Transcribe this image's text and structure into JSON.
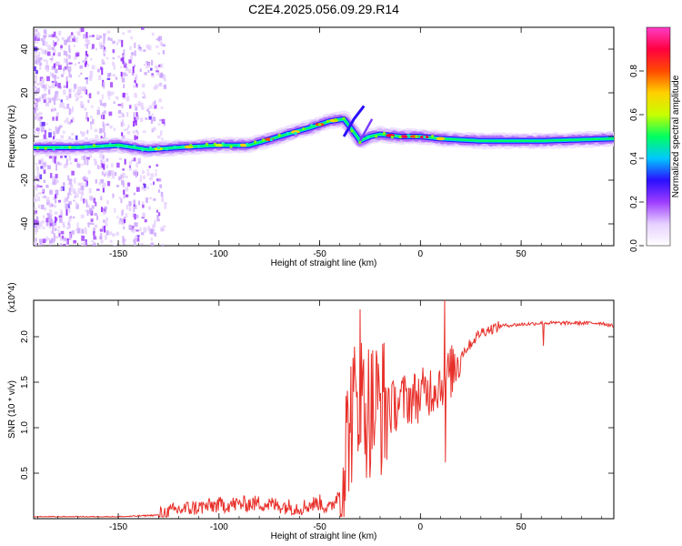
{
  "title": "C2E4.2025.056.09.29.R14",
  "chart_data": [
    {
      "type": "heatmap",
      "xlabel": "Height of straight line (km)",
      "ylabel": "Frequency (Hz)",
      "xlim": [
        -192,
        96
      ],
      "ylim": [
        -50,
        50
      ],
      "xticks": [
        -150,
        -100,
        -50,
        0,
        50
      ],
      "yticks": [
        -40,
        -20,
        0,
        20,
        40
      ],
      "ridge": {
        "x": [
          -190,
          -170,
          -150,
          -135,
          -120,
          -100,
          -85,
          -70,
          -55,
          -45,
          -38,
          -33,
          -30,
          -25,
          -20,
          -10,
          0,
          10,
          30,
          60,
          95
        ],
        "freq": [
          -5,
          -5,
          -4,
          -6,
          -5,
          -4,
          -4,
          0,
          4,
          7,
          8,
          2,
          -2,
          0,
          1,
          0,
          0,
          -1,
          -2,
          -2,
          -1
        ]
      },
      "colorbar": {
        "label": "Normalized spectral amplitude",
        "range": [
          0.0,
          1.0
        ],
        "ticks": [
          "0.0",
          "0.2",
          "0.4",
          "0.6",
          "0.8"
        ],
        "colors": [
          "#ffffff",
          "#e6d0ff",
          "#9d3cff",
          "#2a0fff",
          "#00c8ff",
          "#00ff60",
          "#c8ff00",
          "#ffd000",
          "#ff4a00",
          "#ff0040",
          "#ff3cc8"
        ]
      }
    },
    {
      "type": "line",
      "xlabel": "Height of straight line (km)",
      "ylabel": "SNR (10 * v/v)",
      "multiplier": "(x10^4)",
      "xlim": [
        -192,
        96
      ],
      "ylim": [
        0.0,
        2.4
      ],
      "xticks": [
        -150,
        -100,
        -50,
        0,
        50
      ],
      "yticks": [
        "0.5",
        "1.0",
        "1.5",
        "2.0"
      ],
      "color": "#e8302a",
      "envelope": {
        "x": [
          -192,
          -150,
          -130,
          -120,
          -100,
          -80,
          -60,
          -50,
          -45,
          -40,
          -35,
          -30,
          -25,
          -20,
          -15,
          -10,
          0,
          10,
          15,
          20,
          30,
          40,
          60,
          90,
          95
        ],
        "snr": [
          0.02,
          0.02,
          0.04,
          0.1,
          0.15,
          0.17,
          0.12,
          0.18,
          0.1,
          0.3,
          1.1,
          1.3,
          1.2,
          1.25,
          1.2,
          1.3,
          1.35,
          1.5,
          1.6,
          1.8,
          2.05,
          2.12,
          2.15,
          2.15,
          2.12
        ]
      },
      "spikes": [
        {
          "x": -30,
          "snr": 2.3
        },
        {
          "x": 12,
          "snr": 2.42
        },
        {
          "x": 12.5,
          "snr": 0.62
        },
        {
          "x": 61,
          "snr": 1.9
        }
      ]
    }
  ]
}
